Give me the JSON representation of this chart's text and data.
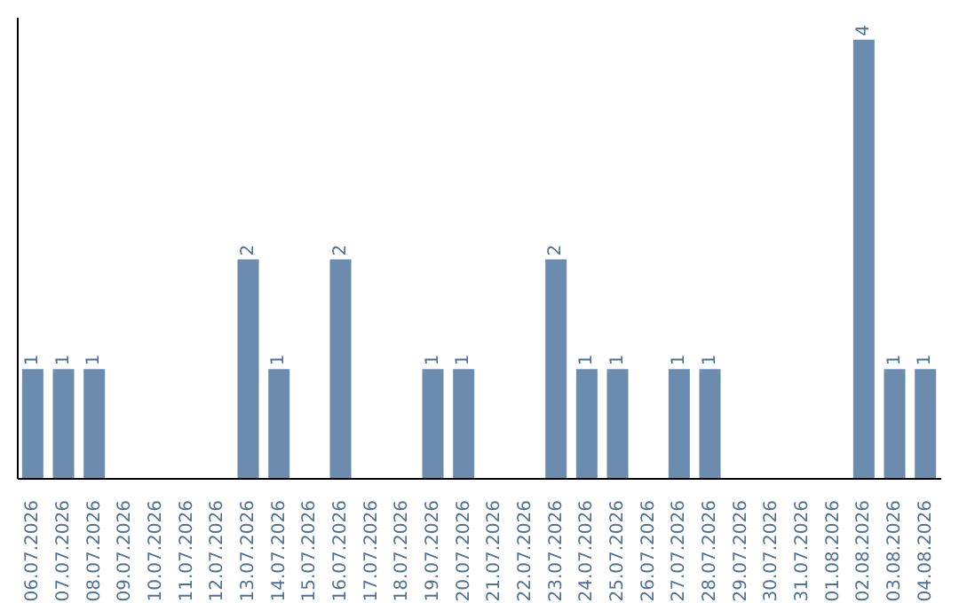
{
  "chart_data": {
    "type": "bar",
    "categories": [
      "06.07.2026",
      "07.07.2026",
      "08.07.2026",
      "09.07.2026",
      "10.07.2026",
      "11.07.2026",
      "12.07.2026",
      "13.07.2026",
      "14.07.2026",
      "15.07.2026",
      "16.07.2026",
      "17.07.2026",
      "18.07.2026",
      "19.07.2026",
      "20.07.2026",
      "21.07.2026",
      "22.07.2026",
      "23.07.2026",
      "24.07.2026",
      "25.07.2026",
      "26.07.2026",
      "27.07.2026",
      "28.07.2026",
      "29.07.2026",
      "30.07.2026",
      "31.07.2026",
      "01.08.2026",
      "02.08.2026",
      "03.08.2026",
      "04.08.2026"
    ],
    "values": [
      1,
      1,
      1,
      0,
      0,
      0,
      0,
      2,
      1,
      0,
      2,
      0,
      0,
      1,
      1,
      0,
      0,
      2,
      1,
      1,
      0,
      1,
      1,
      0,
      0,
      0,
      0,
      4,
      1,
      1
    ],
    "value_labels": [
      "1",
      "1",
      "1",
      null,
      null,
      null,
      null,
      "2",
      "1",
      null,
      "2",
      null,
      null,
      "1",
      "1",
      null,
      null,
      "2",
      "1",
      "1",
      null,
      "1",
      "1",
      null,
      null,
      null,
      null,
      "4",
      "1",
      "1"
    ],
    "color": "#6b8cae",
    "ylim": [
      0,
      4.2
    ],
    "grid": false,
    "legend": false
  }
}
